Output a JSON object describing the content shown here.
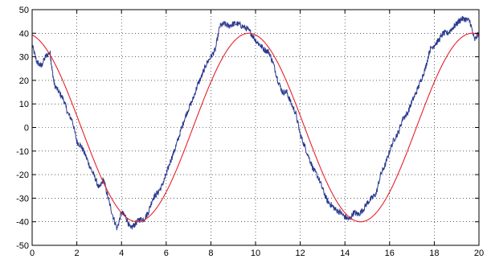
{
  "chart_data": {
    "type": "line",
    "title": "",
    "xlabel": "",
    "ylabel": "",
    "xlim": [
      0,
      20
    ],
    "ylim": [
      -50,
      50
    ],
    "x_ticks": [
      0,
      2,
      4,
      6,
      8,
      10,
      12,
      14,
      16,
      18,
      20
    ],
    "y_ticks": [
      -50,
      -40,
      -30,
      -20,
      -10,
      0,
      10,
      20,
      30,
      40,
      50
    ],
    "grid": true,
    "legend": "none",
    "series": [
      {
        "color": "#2a3a8f",
        "style": "noisy line",
        "points": [
          [
            0.0,
            35
          ],
          [
            0.2,
            28
          ],
          [
            0.4,
            26
          ],
          [
            0.6,
            30
          ],
          [
            0.8,
            32
          ],
          [
            0.9,
            24
          ],
          [
            1.0,
            18
          ],
          [
            1.2,
            15
          ],
          [
            1.4,
            12
          ],
          [
            1.6,
            6
          ],
          [
            1.8,
            3
          ],
          [
            2.0,
            -6
          ],
          [
            2.2,
            -8
          ],
          [
            2.4,
            -12
          ],
          [
            2.6,
            -17
          ],
          [
            2.8,
            -21
          ],
          [
            3.0,
            -26
          ],
          [
            3.2,
            -22
          ],
          [
            3.4,
            -30
          ],
          [
            3.6,
            -37
          ],
          [
            3.8,
            -43
          ],
          [
            4.0,
            -36
          ],
          [
            4.2,
            -38
          ],
          [
            4.4,
            -43
          ],
          [
            4.6,
            -41
          ],
          [
            4.8,
            -39
          ],
          [
            5.0,
            -39
          ],
          [
            5.2,
            -36
          ],
          [
            5.4,
            -30
          ],
          [
            5.6,
            -28
          ],
          [
            5.8,
            -25
          ],
          [
            6.0,
            -20
          ],
          [
            6.2,
            -14
          ],
          [
            6.4,
            -9
          ],
          [
            6.6,
            -3
          ],
          [
            6.8,
            3
          ],
          [
            7.0,
            8
          ],
          [
            7.2,
            12
          ],
          [
            7.4,
            18
          ],
          [
            7.6,
            22
          ],
          [
            7.8,
            27
          ],
          [
            8.0,
            30
          ],
          [
            8.2,
            33
          ],
          [
            8.4,
            43
          ],
          [
            8.6,
            44
          ],
          [
            8.8,
            43
          ],
          [
            9.0,
            44
          ],
          [
            9.2,
            44
          ],
          [
            9.4,
            43
          ],
          [
            9.6,
            42
          ],
          [
            9.8,
            40
          ],
          [
            10.0,
            37
          ],
          [
            10.2,
            35
          ],
          [
            10.4,
            33
          ],
          [
            10.6,
            32
          ],
          [
            10.8,
            27
          ],
          [
            11.0,
            20
          ],
          [
            11.2,
            15
          ],
          [
            11.4,
            15
          ],
          [
            11.6,
            10
          ],
          [
            11.8,
            6
          ],
          [
            12.0,
            -3
          ],
          [
            12.2,
            -8
          ],
          [
            12.4,
            -13
          ],
          [
            12.6,
            -18
          ],
          [
            12.8,
            -21
          ],
          [
            13.0,
            -26
          ],
          [
            13.2,
            -31
          ],
          [
            13.4,
            -33
          ],
          [
            13.6,
            -35
          ],
          [
            13.8,
            -36
          ],
          [
            14.0,
            -38
          ],
          [
            14.2,
            -39
          ],
          [
            14.4,
            -36
          ],
          [
            14.6,
            -37
          ],
          [
            14.8,
            -35
          ],
          [
            15.0,
            -32
          ],
          [
            15.2,
            -30
          ],
          [
            15.4,
            -28
          ],
          [
            15.6,
            -20
          ],
          [
            15.8,
            -16
          ],
          [
            16.0,
            -10
          ],
          [
            16.2,
            -5
          ],
          [
            16.4,
            -2
          ],
          [
            16.6,
            4
          ],
          [
            16.8,
            6
          ],
          [
            17.0,
            11
          ],
          [
            17.2,
            15
          ],
          [
            17.4,
            20
          ],
          [
            17.6,
            25
          ],
          [
            17.8,
            33
          ],
          [
            18.0,
            35
          ],
          [
            18.2,
            37
          ],
          [
            18.4,
            40
          ],
          [
            18.6,
            40
          ],
          [
            18.8,
            42
          ],
          [
            19.0,
            44
          ],
          [
            19.2,
            46
          ],
          [
            19.4,
            46
          ],
          [
            19.6,
            45
          ],
          [
            19.8,
            37
          ],
          [
            20.0,
            40
          ]
        ]
      },
      {
        "color": "#e8202a",
        "style": "smooth line",
        "function": "sine",
        "amplitude": 40,
        "period": 10,
        "phase_shift": 0.3
      }
    ]
  }
}
